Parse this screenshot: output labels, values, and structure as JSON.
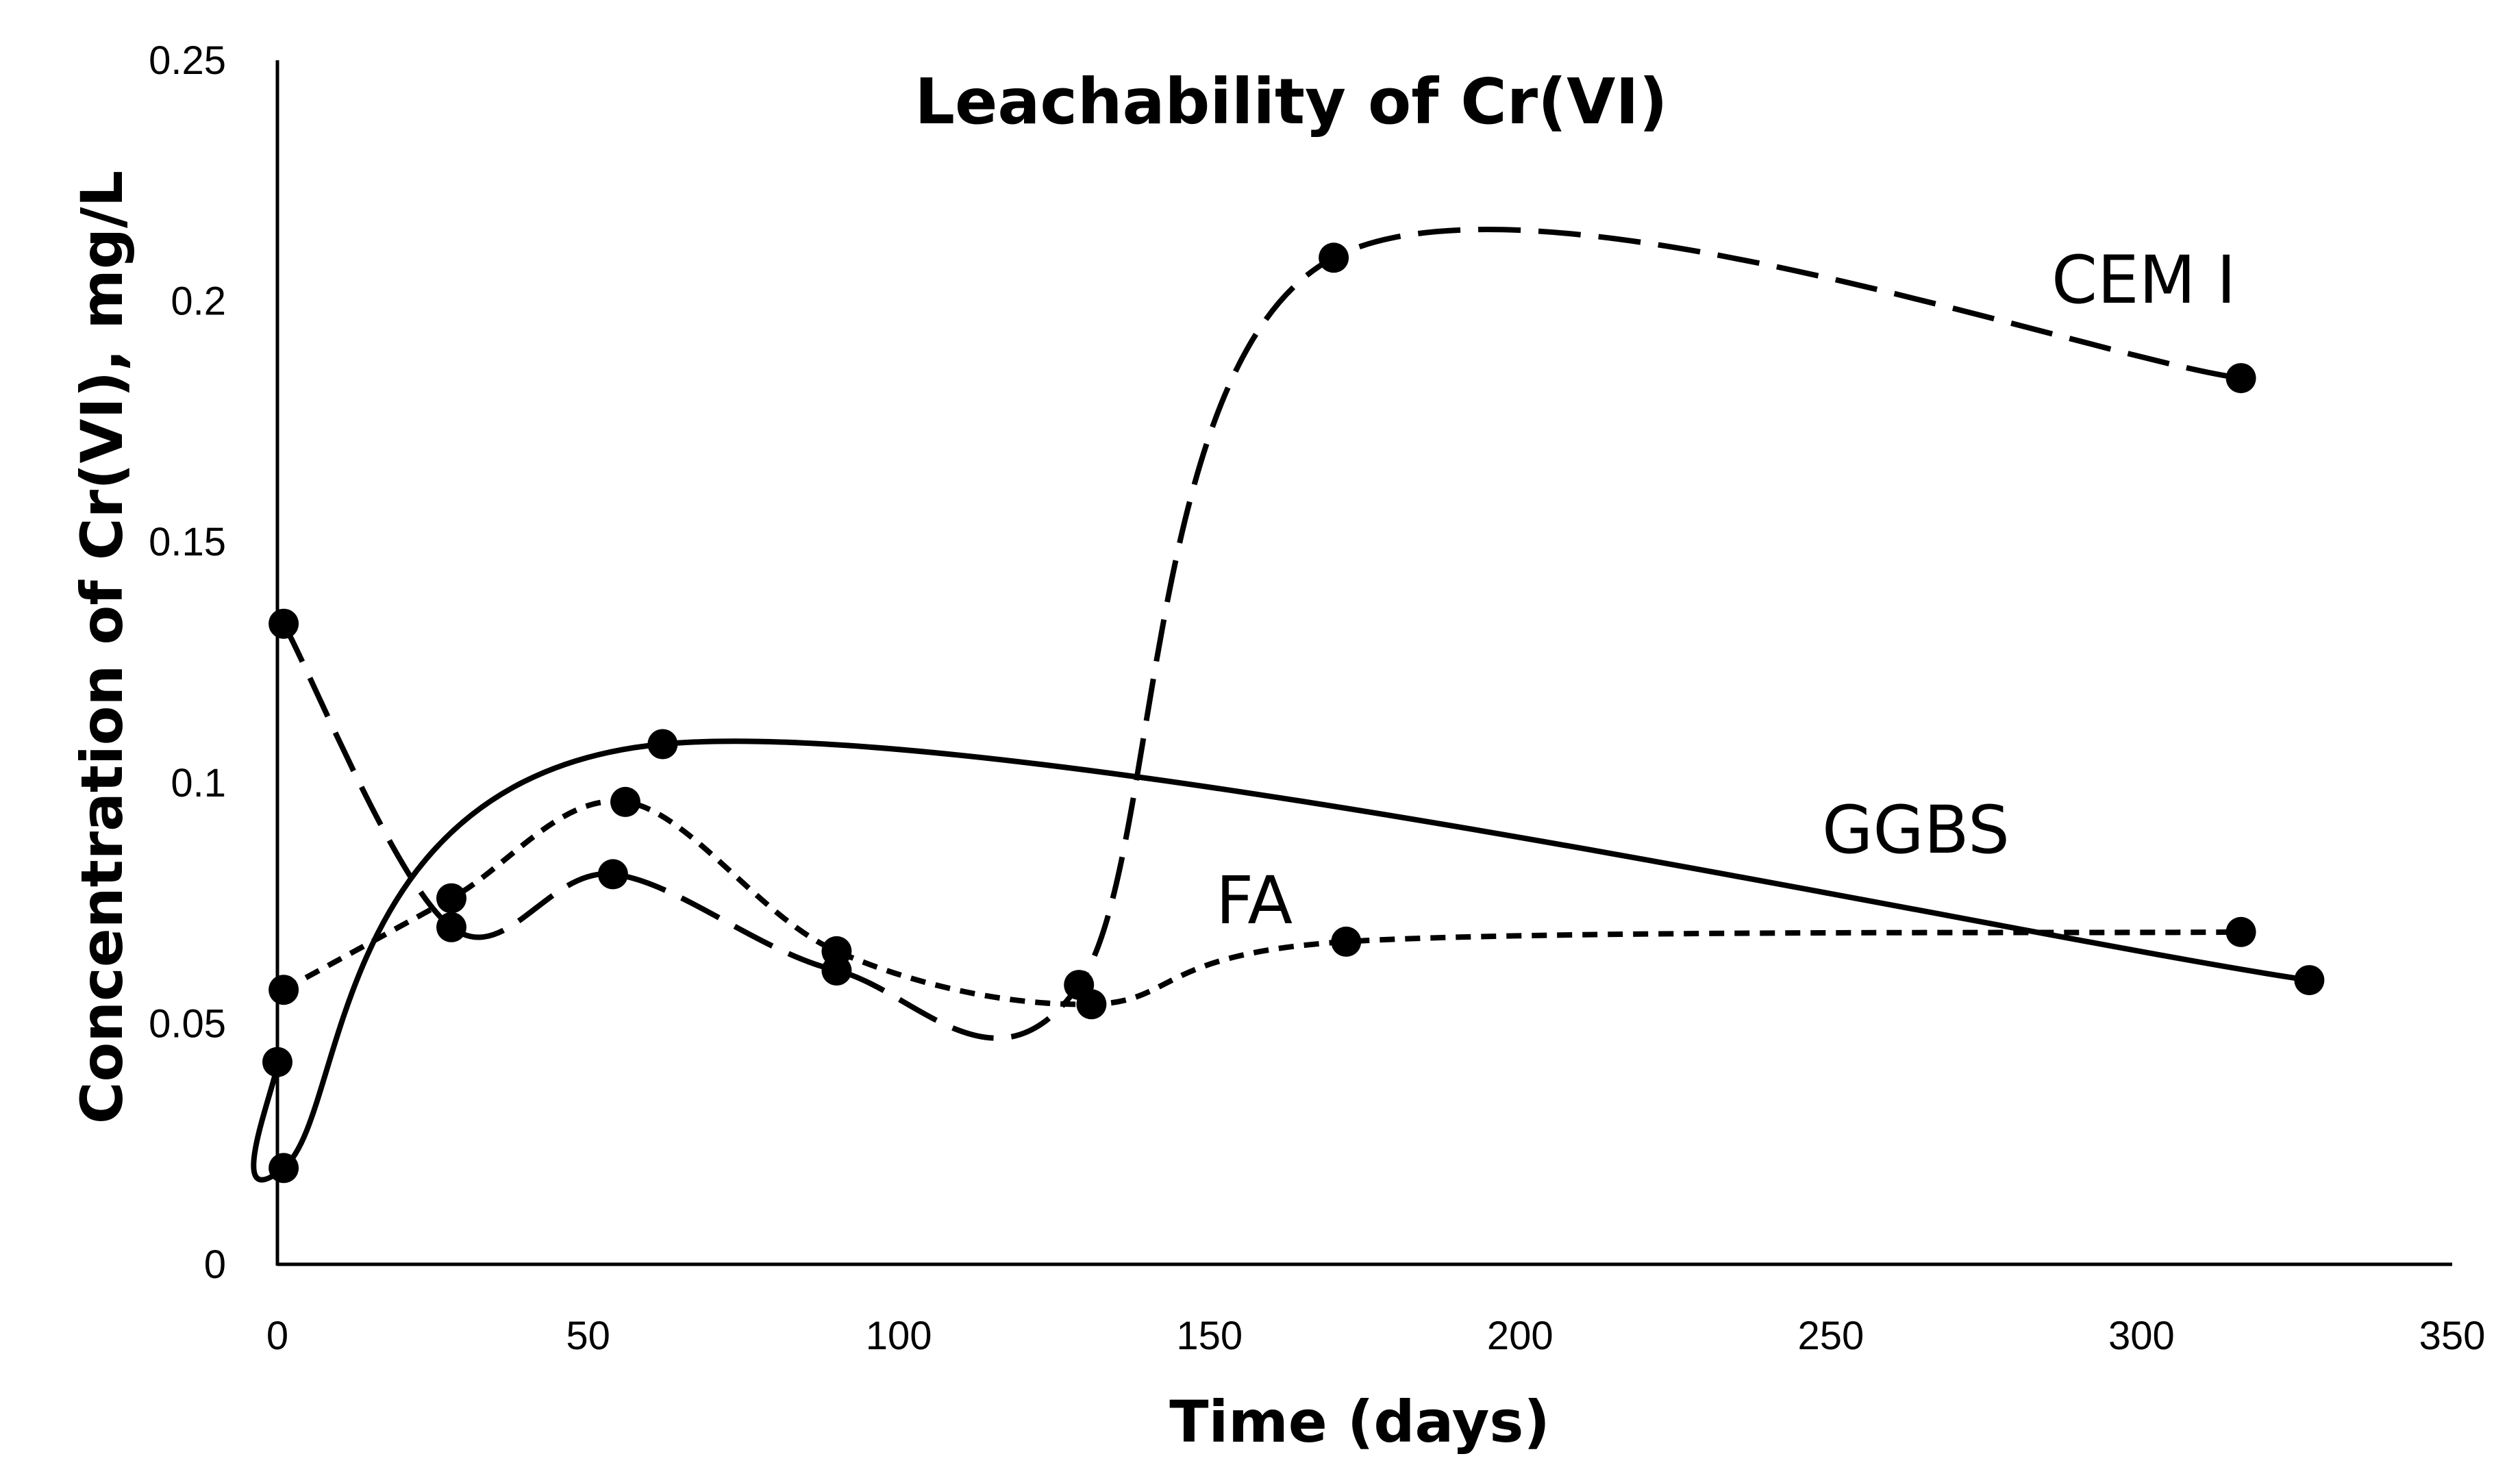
{
  "chart_data": {
    "type": "line",
    "title": "Leachability of Cr(VI)",
    "xlabel": "Time (days)",
    "ylabel": "Concentration of Cr(VI), mg/L",
    "xlim": [
      0,
      350
    ],
    "ylim": [
      0,
      0.25
    ],
    "x_ticks": [
      "0",
      "50",
      "100",
      "150",
      "200",
      "250",
      "300",
      "350"
    ],
    "y_ticks": [
      "0",
      "0.05",
      "0.1",
      "0.15",
      "0.2",
      "0.25"
    ],
    "grid": false,
    "legend": "none",
    "series": [
      {
        "name": "CEM I",
        "style": "long-dash",
        "x": [
          1,
          28,
          54,
          90,
          129,
          170,
          316
        ],
        "y": [
          0.133,
          0.07,
          0.081,
          0.061,
          0.058,
          0.209,
          0.184
        ]
      },
      {
        "name": "FA",
        "style": "short-dash",
        "x": [
          1,
          28,
          56,
          90,
          131,
          172,
          316
        ],
        "y": [
          0.057,
          0.076,
          0.096,
          0.065,
          0.054,
          0.067,
          0.069
        ]
      },
      {
        "name": "GGBS",
        "style": "solid",
        "x": [
          0,
          1,
          62,
          327
        ],
        "y": [
          0.042,
          0.02,
          0.108,
          0.059
        ]
      }
    ],
    "annotations": [
      {
        "text": "CEM I",
        "series": "CEM I"
      },
      {
        "text": "FA",
        "series": "FA"
      },
      {
        "text": "GGBS",
        "series": "GGBS"
      }
    ],
    "colors": {
      "line": "#000000",
      "marker": "#000000",
      "background": "#ffffff"
    }
  }
}
